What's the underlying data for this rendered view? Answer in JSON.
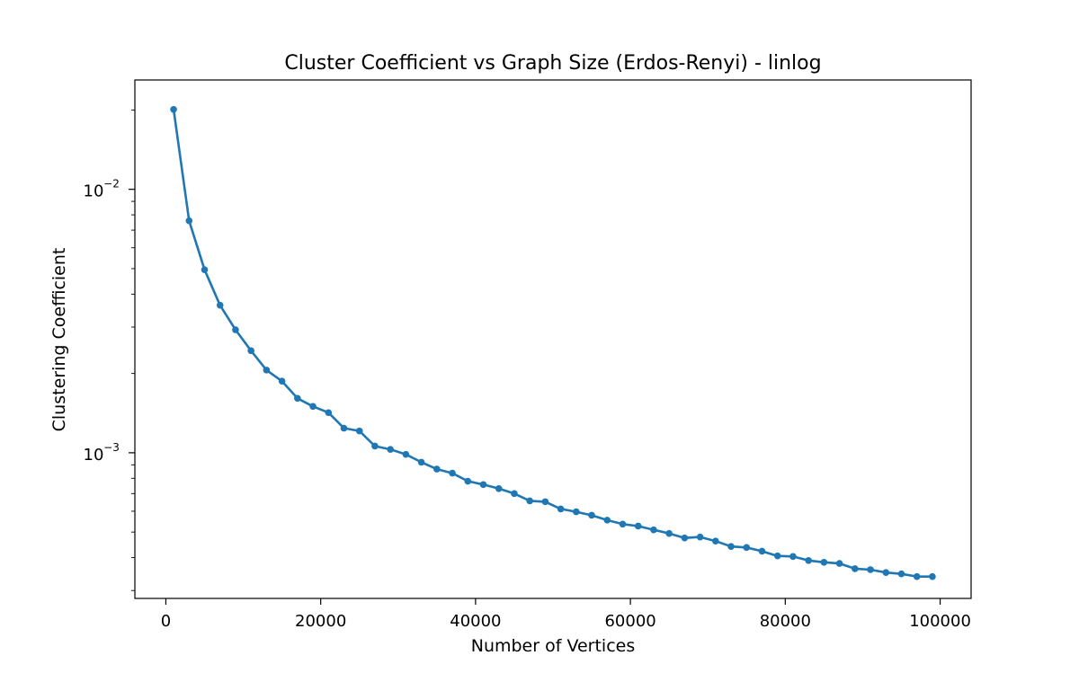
{
  "chart_data": {
    "type": "line",
    "title": "Cluster Coefficient vs Graph Size (Erdos-Renyi) - linlog",
    "xlabel": "Number of Vertices",
    "ylabel": "Clustering Coefficient",
    "yscale": "log",
    "grid": false,
    "legend": "none",
    "color": "#1f77b4",
    "xlim": [
      -4000,
      104000
    ],
    "ylim": [
      0.00028,
      0.026
    ],
    "x_ticks": [
      {
        "value": 0,
        "label": "0"
      },
      {
        "value": 20000,
        "label": "20000"
      },
      {
        "value": 40000,
        "label": "40000"
      },
      {
        "value": 60000,
        "label": "60000"
      },
      {
        "value": 80000,
        "label": "80000"
      },
      {
        "value": 100000,
        "label": "100000"
      }
    ],
    "y_ticks": [
      {
        "value": 0.01,
        "base": "10",
        "exponent": "−2"
      },
      {
        "value": 0.001,
        "base": "10",
        "exponent": "−3"
      }
    ],
    "y_minor_ticks": [
      0.0003,
      0.0004,
      0.0005,
      0.0006,
      0.0007,
      0.0008,
      0.0009,
      0.002,
      0.003,
      0.004,
      0.005,
      0.006,
      0.007,
      0.008,
      0.009,
      0.02
    ],
    "series": [
      {
        "x": [
          1000,
          3000,
          5000,
          7000,
          9000,
          11000,
          13000,
          15000,
          17000,
          19000,
          21000,
          23000,
          25000,
          27000,
          29000,
          31000,
          33000,
          35000,
          37000,
          39000,
          41000,
          43000,
          45000,
          47000,
          49000,
          51000,
          53000,
          55000,
          57000,
          59000,
          61000,
          63000,
          65000,
          67000,
          69000,
          71000,
          73000,
          75000,
          77000,
          79000,
          81000,
          83000,
          85000,
          87000,
          89000,
          91000,
          93000,
          95000,
          97000,
          99000
        ],
        "y": [
          0.0201,
          0.0076,
          0.00495,
          0.00363,
          0.00293,
          0.00244,
          0.00206,
          0.00187,
          0.00161,
          0.0015,
          0.00142,
          0.00124,
          0.00121,
          0.00106,
          0.00103,
          0.000986,
          0.000921,
          0.000867,
          0.000837,
          0.00078,
          0.000757,
          0.000731,
          0.0007,
          0.000657,
          0.000652,
          0.000612,
          0.000597,
          0.000579,
          0.000555,
          0.000536,
          0.000527,
          0.00051,
          0.000494,
          0.000475,
          0.000479,
          0.000462,
          0.000441,
          0.000437,
          0.000423,
          0.000406,
          0.000404,
          0.00039,
          0.000384,
          0.00038,
          0.000363,
          0.00036,
          0.000351,
          0.000347,
          0.000339,
          0.000339
        ]
      }
    ]
  }
}
